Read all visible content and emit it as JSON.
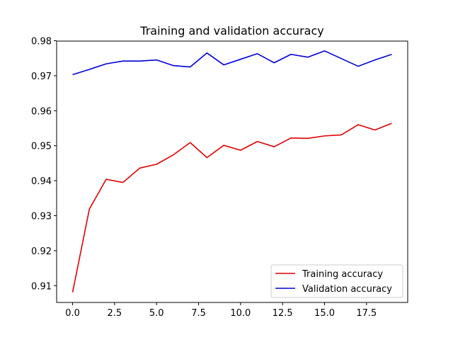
{
  "chart_data": {
    "type": "line",
    "title": "Training and validation accuracy",
    "xlabel": "",
    "ylabel": "",
    "x": [
      0,
      1,
      2,
      3,
      4,
      5,
      6,
      7,
      8,
      9,
      10,
      11,
      12,
      13,
      14,
      15,
      16,
      17,
      18,
      19
    ],
    "xlim": [
      -0.95,
      19.95
    ],
    "ylim": [
      0.9052,
      0.9799
    ],
    "x_ticks": [
      0.0,
      2.5,
      5.0,
      7.5,
      10.0,
      12.5,
      15.0,
      17.5
    ],
    "x_tick_labels": [
      "0.0",
      "2.5",
      "5.0",
      "7.5",
      "10.0",
      "12.5",
      "15.0",
      "17.5"
    ],
    "y_ticks": [
      0.91,
      0.92,
      0.93,
      0.94,
      0.95,
      0.96,
      0.97,
      0.98
    ],
    "y_tick_labels": [
      "0.91",
      "0.92",
      "0.93",
      "0.94",
      "0.95",
      "0.96",
      "0.97",
      "0.98"
    ],
    "grid": false,
    "legend_position": "bottom-right",
    "series": [
      {
        "name": "Training accuracy",
        "color": "#e00000",
        "values": [
          0.9081,
          0.9319,
          0.9404,
          0.9395,
          0.9436,
          0.9447,
          0.9474,
          0.9509,
          0.9466,
          0.9501,
          0.9487,
          0.9512,
          0.9497,
          0.9522,
          0.9521,
          0.9528,
          0.9531,
          0.956,
          0.9545,
          0.9564
        ]
      },
      {
        "name": "Validation accuracy",
        "color": "#0000d8",
        "values": [
          0.9703,
          0.9718,
          0.9734,
          0.9742,
          0.9742,
          0.9745,
          0.9729,
          0.9725,
          0.9765,
          0.9731,
          0.9747,
          0.9763,
          0.9737,
          0.9761,
          0.9753,
          0.9771,
          0.9749,
          0.9727,
          0.9745,
          0.9761
        ]
      }
    ]
  }
}
